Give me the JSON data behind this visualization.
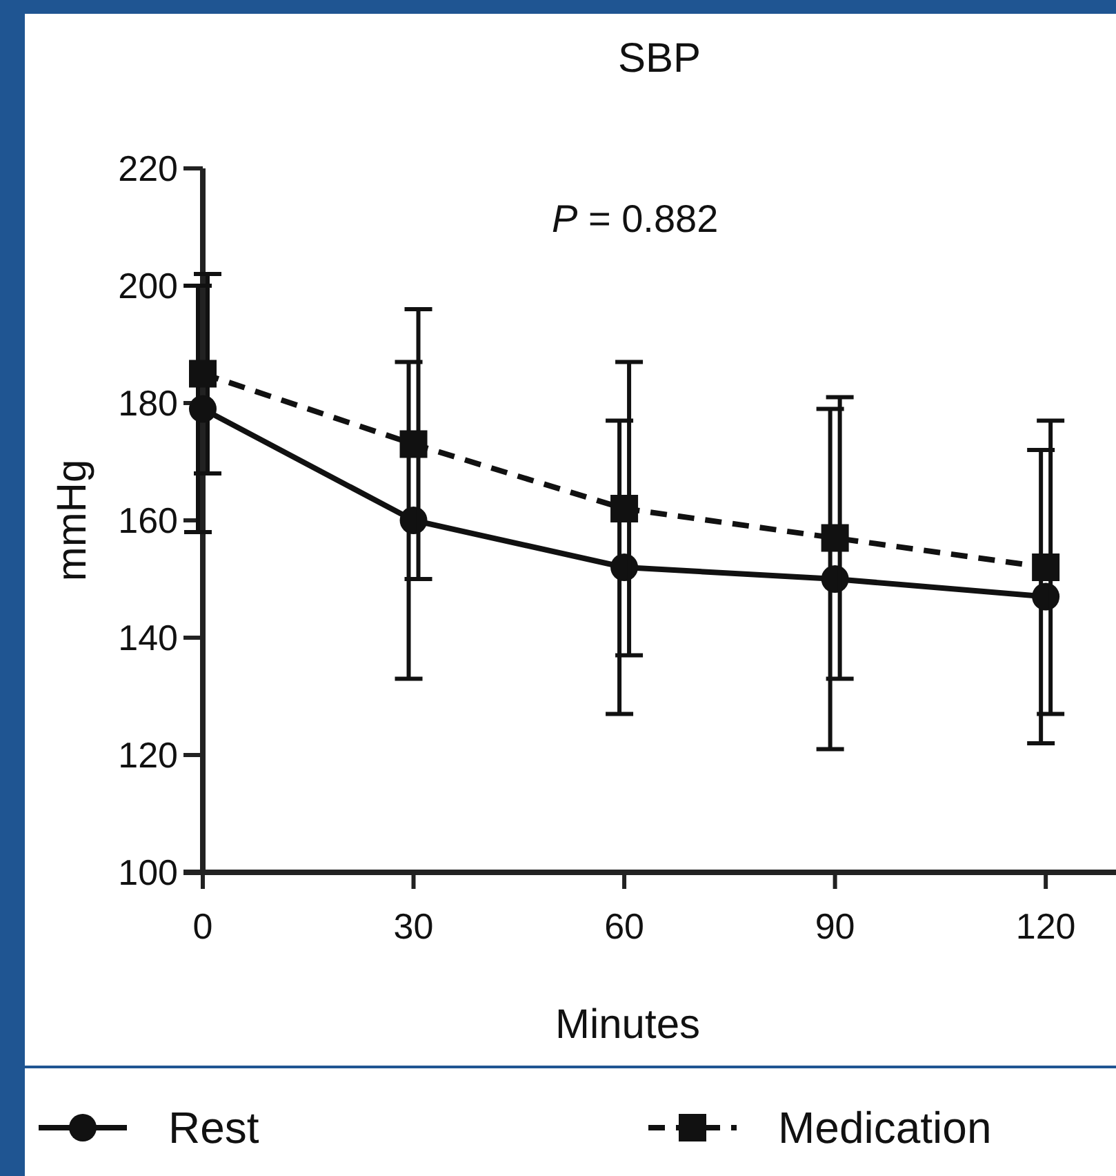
{
  "chart_data": {
    "type": "line",
    "title": "SBP",
    "xlabel": "Minutes",
    "ylabel": "mmHg",
    "annotations": [
      "P = 0.882"
    ],
    "x": [
      0,
      30,
      60,
      90,
      120
    ],
    "xlim": [
      0,
      130
    ],
    "xticks": [
      0,
      30,
      60,
      90,
      120
    ],
    "ylim": [
      100,
      220
    ],
    "yticks": [
      100,
      120,
      140,
      160,
      180,
      200,
      220
    ],
    "grid": false,
    "legend": "bottom",
    "series": [
      {
        "name": "Rest",
        "color": "#111111",
        "marker": "circle",
        "line_style": "solid",
        "values": [
          179,
          160,
          152,
          150,
          147
        ],
        "errors": [
          21,
          27,
          25,
          29,
          25
        ]
      },
      {
        "name": "Medication",
        "color": "#111111",
        "marker": "square",
        "line_style": "dashed",
        "values": [
          185,
          173,
          162,
          157,
          152
        ],
        "errors": [
          17,
          23,
          25,
          24,
          25
        ]
      }
    ]
  }
}
